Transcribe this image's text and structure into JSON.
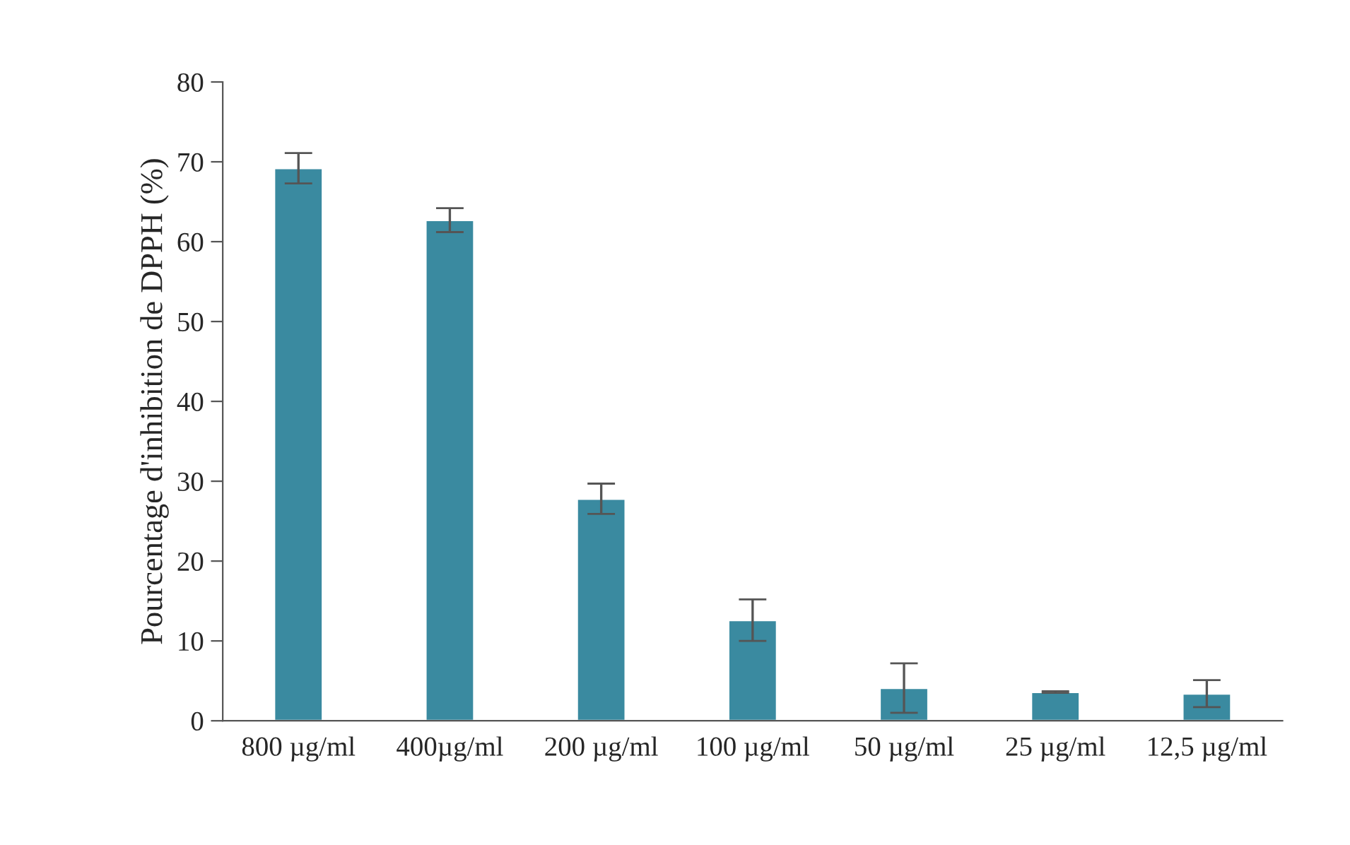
{
  "chart_data": {
    "type": "bar",
    "ylabel": "Pourcentage d'inhibition de DPPH (%)",
    "categories": [
      "800 µg/ml",
      "400µg/ml",
      "200 µg/ml",
      "100 µg/ml",
      "50 µg/ml",
      "25 µg/ml",
      "12,5 µg/ml"
    ],
    "values": [
      69.2,
      62.7,
      27.8,
      12.6,
      4.1,
      3.6,
      3.4
    ],
    "errors": [
      1.9,
      1.5,
      1.9,
      2.6,
      3.1,
      0.1,
      1.7
    ],
    "color": "#3a8aa0",
    "ylim": [
      0,
      80
    ],
    "yticks": [
      0,
      10,
      20,
      30,
      40,
      50,
      60,
      70,
      80
    ],
    "grid": false
  }
}
